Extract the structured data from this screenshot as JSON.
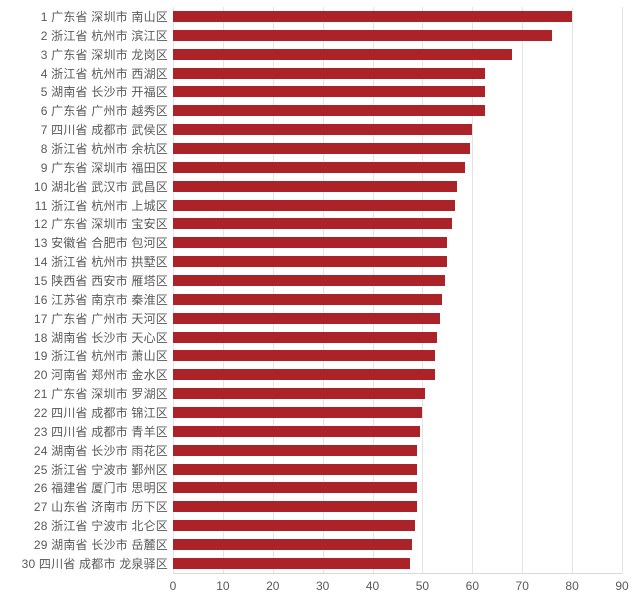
{
  "chart_data": {
    "type": "bar",
    "orientation": "horizontal",
    "title": "",
    "xlabel": "",
    "ylabel": "",
    "xlim": [
      0,
      90
    ],
    "x_ticks": [
      0,
      10,
      20,
      30,
      40,
      50,
      60,
      70,
      80,
      90
    ],
    "grid": true,
    "legend": null,
    "bar_color": "#ab2328",
    "grid_color": "#e4e4e4",
    "axis_line_color": "#d9d9d9",
    "text_color": "#595959",
    "rows": [
      {
        "rank": 1,
        "province": "广东省",
        "city": "深圳市",
        "district": "南山区",
        "value": 80
      },
      {
        "rank": 2,
        "province": "浙江省",
        "city": "杭州市",
        "district": "滨江区",
        "value": 76
      },
      {
        "rank": 3,
        "province": "广东省",
        "city": "深圳市",
        "district": "龙岗区",
        "value": 68
      },
      {
        "rank": 4,
        "province": "浙江省",
        "city": "杭州市",
        "district": "西湖区",
        "value": 62.5
      },
      {
        "rank": 5,
        "province": "湖南省",
        "city": "长沙市",
        "district": "开福区",
        "value": 62.5
      },
      {
        "rank": 6,
        "province": "广东省",
        "city": "广州市",
        "district": "越秀区",
        "value": 62.5
      },
      {
        "rank": 7,
        "province": "四川省",
        "city": "成都市",
        "district": "武侯区",
        "value": 60
      },
      {
        "rank": 8,
        "province": "浙江省",
        "city": "杭州市",
        "district": "余杭区",
        "value": 59.5
      },
      {
        "rank": 9,
        "province": "广东省",
        "city": "深圳市",
        "district": "福田区",
        "value": 58.5
      },
      {
        "rank": 10,
        "province": "湖北省",
        "city": "武汉市",
        "district": "武昌区",
        "value": 57
      },
      {
        "rank": 11,
        "province": "浙江省",
        "city": "杭州市",
        "district": "上城区",
        "value": 56.5
      },
      {
        "rank": 12,
        "province": "广东省",
        "city": "深圳市",
        "district": "宝安区",
        "value": 56
      },
      {
        "rank": 13,
        "province": "安徽省",
        "city": "合肥市",
        "district": "包河区",
        "value": 55
      },
      {
        "rank": 14,
        "province": "浙江省",
        "city": "杭州市",
        "district": "拱墅区",
        "value": 55
      },
      {
        "rank": 15,
        "province": "陕西省",
        "city": "西安市",
        "district": "雁塔区",
        "value": 54.5
      },
      {
        "rank": 16,
        "province": "江苏省",
        "city": "南京市",
        "district": "秦淮区",
        "value": 54
      },
      {
        "rank": 17,
        "province": "广东省",
        "city": "广州市",
        "district": "天河区",
        "value": 53.5
      },
      {
        "rank": 18,
        "province": "湖南省",
        "city": "长沙市",
        "district": "天心区",
        "value": 53
      },
      {
        "rank": 19,
        "province": "浙江省",
        "city": "杭州市",
        "district": "萧山区",
        "value": 52.5
      },
      {
        "rank": 20,
        "province": "河南省",
        "city": "郑州市",
        "district": "金水区",
        "value": 52.5
      },
      {
        "rank": 21,
        "province": "广东省",
        "city": "深圳市",
        "district": "罗湖区",
        "value": 50.5
      },
      {
        "rank": 22,
        "province": "四川省",
        "city": "成都市",
        "district": "锦江区",
        "value": 50
      },
      {
        "rank": 23,
        "province": "四川省",
        "city": "成都市",
        "district": "青羊区",
        "value": 49.5
      },
      {
        "rank": 24,
        "province": "湖南省",
        "city": "长沙市",
        "district": "雨花区",
        "value": 49
      },
      {
        "rank": 25,
        "province": "浙江省",
        "city": "宁波市",
        "district": "鄞州区",
        "value": 49
      },
      {
        "rank": 26,
        "province": "福建省",
        "city": "厦门市",
        "district": "思明区",
        "value": 49
      },
      {
        "rank": 27,
        "province": "山东省",
        "city": "济南市",
        "district": "历下区",
        "value": 49
      },
      {
        "rank": 28,
        "province": "浙江省",
        "city": "宁波市",
        "district": "北仑区",
        "value": 48.5
      },
      {
        "rank": 29,
        "province": "湖南省",
        "city": "长沙市",
        "district": "岳麓区",
        "value": 48
      },
      {
        "rank": 30,
        "province": "四川省",
        "city": "成都市",
        "district": "龙泉驿区",
        "value": 47.5
      }
    ]
  }
}
